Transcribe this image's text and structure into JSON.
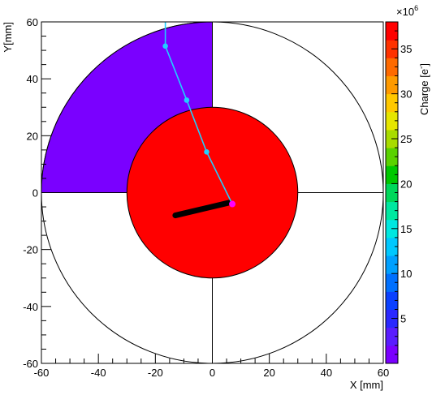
{
  "chart_data": {
    "type": "heatmap",
    "title": "",
    "xlabel": "X [mm]",
    "ylabel": "Y[mm]",
    "xlim": [
      -60,
      60
    ],
    "ylim": [
      -60,
      60
    ],
    "xticks": [
      -60,
      -40,
      -20,
      0,
      20,
      40,
      60
    ],
    "yticks": [
      -60,
      -40,
      -20,
      0,
      20,
      40,
      60
    ],
    "tick_labels_x": [
      "-60",
      "-40",
      "-20",
      "0",
      "20",
      "40",
      "60"
    ],
    "tick_labels_y": [
      "-60",
      "-40",
      "-20",
      "0",
      "20",
      "40",
      "60"
    ],
    "grid": false,
    "colorbar": {
      "label": "Charge [e",
      "label_superscript": "-",
      "label_suffix": "]",
      "exponent_base": "×10",
      "exponent": "6",
      "range": [
        0,
        38
      ],
      "ticks": [
        5,
        10,
        15,
        20,
        25,
        30,
        35
      ],
      "tick_labels": [
        "5",
        "10",
        "15",
        "20",
        "25",
        "30",
        "35"
      ],
      "palette": [
        "#7a00ff",
        "#5a1cff",
        "#2a28ff",
        "#0a40ff",
        "#0070ff",
        "#00a0ff",
        "#00c8ff",
        "#00e8e0",
        "#00e8a0",
        "#00d85a",
        "#00c800",
        "#5ad200",
        "#a8dc00",
        "#e6e600",
        "#ffc800",
        "#ff9a00",
        "#ff6a00",
        "#ff3200",
        "#ff0000"
      ]
    },
    "detector": {
      "outer_radius": 60,
      "inner_radius": 30,
      "regions": [
        {
          "name": "outer-quadrant-top-left",
          "value": 0.5
        },
        {
          "name": "inner-disk",
          "value": 38
        }
      ]
    },
    "track": {
      "color": "#1fd0ff",
      "points": [
        [
          -16.5,
          60
        ],
        [
          -16.5,
          51.5
        ],
        [
          -9,
          32.5
        ],
        [
          -2,
          14.3
        ],
        [
          7,
          -4
        ]
      ],
      "marker_color": "#1fd0ff",
      "end_marker_color": "#ff00ff"
    },
    "recoil_track": {
      "color": "#000000",
      "from": [
        -13,
        -8
      ],
      "to": [
        6,
        -3.5
      ]
    }
  }
}
